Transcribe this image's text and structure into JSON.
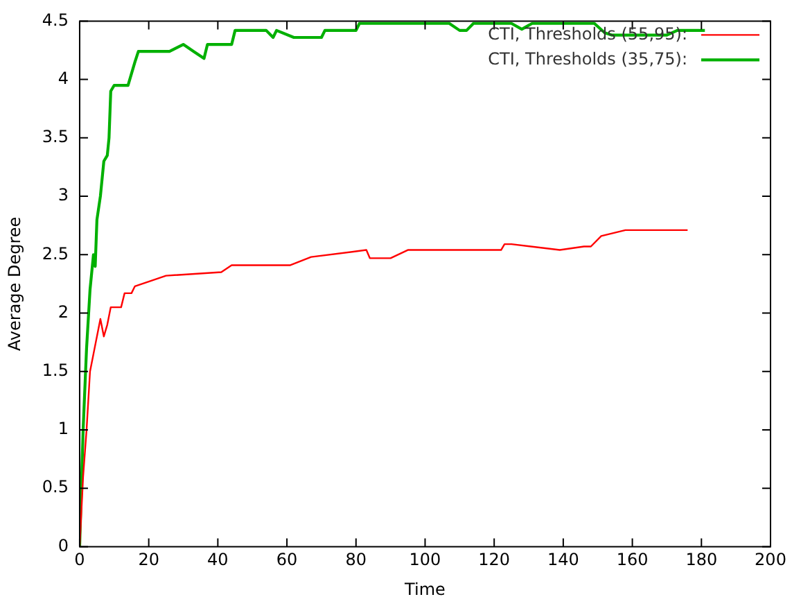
{
  "chart_data": {
    "type": "line",
    "xlabel": "Time",
    "ylabel": "Average Degree",
    "xlim": [
      0,
      200
    ],
    "xticks": [
      0,
      20,
      40,
      60,
      80,
      100,
      120,
      140,
      160,
      180,
      200
    ],
    "ylim": [
      0,
      4.5
    ],
    "yticks": [
      0,
      0.5,
      1,
      1.5,
      2,
      2.5,
      3,
      3.5,
      4,
      4.5
    ],
    "grid": false,
    "legend": "top right",
    "marker": "none",
    "line_style": "solid",
    "series": [
      {
        "name": "CTI, Thresholds (55,95):",
        "color": "#ff0000",
        "x": [
          0,
          1,
          2,
          3,
          4,
          5,
          6,
          7,
          8,
          9,
          12,
          13,
          15,
          16,
          20,
          25,
          41,
          44,
          61,
          67,
          83,
          84,
          90,
          95,
          122,
          123,
          125,
          139,
          146,
          148,
          151,
          158,
          176
        ],
        "values": [
          0,
          0.6,
          1,
          1.5,
          1.65,
          1.8,
          1.95,
          1.8,
          1.9,
          2.05,
          2.05,
          2.17,
          2.17,
          2.23,
          2.27,
          2.32,
          2.35,
          2.41,
          2.41,
          2.48,
          2.54,
          2.47,
          2.47,
          2.54,
          2.54,
          2.59,
          2.59,
          2.54,
          2.57,
          2.57,
          2.66,
          2.71,
          2.71
        ]
      },
      {
        "name": "CTI, Thresholds (35,75):",
        "color": "#00b000",
        "x": [
          0,
          0.5,
          1,
          2,
          3,
          4,
          4.5,
          5,
          6,
          7,
          8,
          8.5,
          9,
          10,
          14,
          16,
          17,
          26,
          30,
          33,
          36,
          37,
          44,
          45,
          54,
          56,
          57,
          62,
          70,
          71,
          80,
          81,
          107,
          110,
          112,
          114,
          125,
          128,
          131,
          149,
          152,
          154,
          170,
          173,
          181
        ],
        "values": [
          0,
          0.5,
          1,
          1.7,
          2.2,
          2.5,
          2.4,
          2.8,
          3,
          3.3,
          3.35,
          3.5,
          3.9,
          3.95,
          3.95,
          4.15,
          4.24,
          4.24,
          4.3,
          4.24,
          4.18,
          4.3,
          4.3,
          4.42,
          4.42,
          4.36,
          4.42,
          4.36,
          4.36,
          4.42,
          4.42,
          4.48,
          4.48,
          4.42,
          4.42,
          4.48,
          4.48,
          4.43,
          4.48,
          4.48,
          4.4,
          4.38,
          4.38,
          4.42,
          4.42
        ]
      }
    ]
  }
}
